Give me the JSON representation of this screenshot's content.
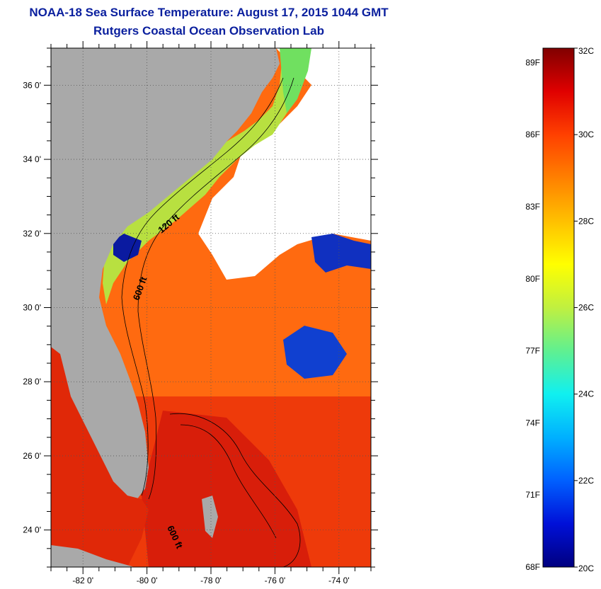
{
  "title": "NOAA-18 Sea Surface Temperature:  August 17, 2015 1044 GMT",
  "subtitle": "Rutgers Coastal Ocean Observation Lab",
  "map": {
    "latitude_labels": [
      {
        "value": 36,
        "label": "36 0'"
      },
      {
        "value": 34,
        "label": "34 0'"
      },
      {
        "value": 32,
        "label": "32 0'"
      },
      {
        "value": 30,
        "label": "30 0'"
      },
      {
        "value": 28,
        "label": "28 0'"
      },
      {
        "value": 26,
        "label": "26 0'"
      },
      {
        "value": 24,
        "label": "24 0'"
      }
    ],
    "longitude_labels": [
      {
        "value": -82,
        "label": "-82 0'"
      },
      {
        "value": -80,
        "label": "-80 0'"
      },
      {
        "value": -78,
        "label": "-78 0'"
      },
      {
        "value": -76,
        "label": "-76 0'"
      },
      {
        "value": -74,
        "label": "-74 0'"
      }
    ],
    "lat_range": [
      23,
      37
    ],
    "lon_range": [
      -83,
      -73
    ],
    "isobath_labels": [
      "120 ft",
      "600 ft",
      "600 ft"
    ],
    "land_color": "#a9a9a9",
    "cloud_color": "#ffffff"
  },
  "colorbar": {
    "range_c": [
      20,
      32
    ],
    "celsius_labels": [
      {
        "value": 32,
        "label": "32C"
      },
      {
        "value": 30,
        "label": "30C"
      },
      {
        "value": 28,
        "label": "28C"
      },
      {
        "value": 26,
        "label": "26C"
      },
      {
        "value": 24,
        "label": "24C"
      },
      {
        "value": 22,
        "label": "22C"
      },
      {
        "value": 20,
        "label": "20C"
      }
    ],
    "fahrenheit_labels": [
      {
        "value": 89,
        "label": "89F"
      },
      {
        "value": 86,
        "label": "86F"
      },
      {
        "value": 83,
        "label": "83F"
      },
      {
        "value": 80,
        "label": "80F"
      },
      {
        "value": 77,
        "label": "77F"
      },
      {
        "value": 74,
        "label": "74F"
      },
      {
        "value": 71,
        "label": "71F"
      },
      {
        "value": 68,
        "label": "68F"
      }
    ],
    "colors": [
      "#000080",
      "#0010d8",
      "#0060ff",
      "#00b0ff",
      "#10f0f0",
      "#60f090",
      "#c0f040",
      "#ffff00",
      "#ffc000",
      "#ff8000",
      "#ff4000",
      "#e00000",
      "#800000"
    ]
  }
}
